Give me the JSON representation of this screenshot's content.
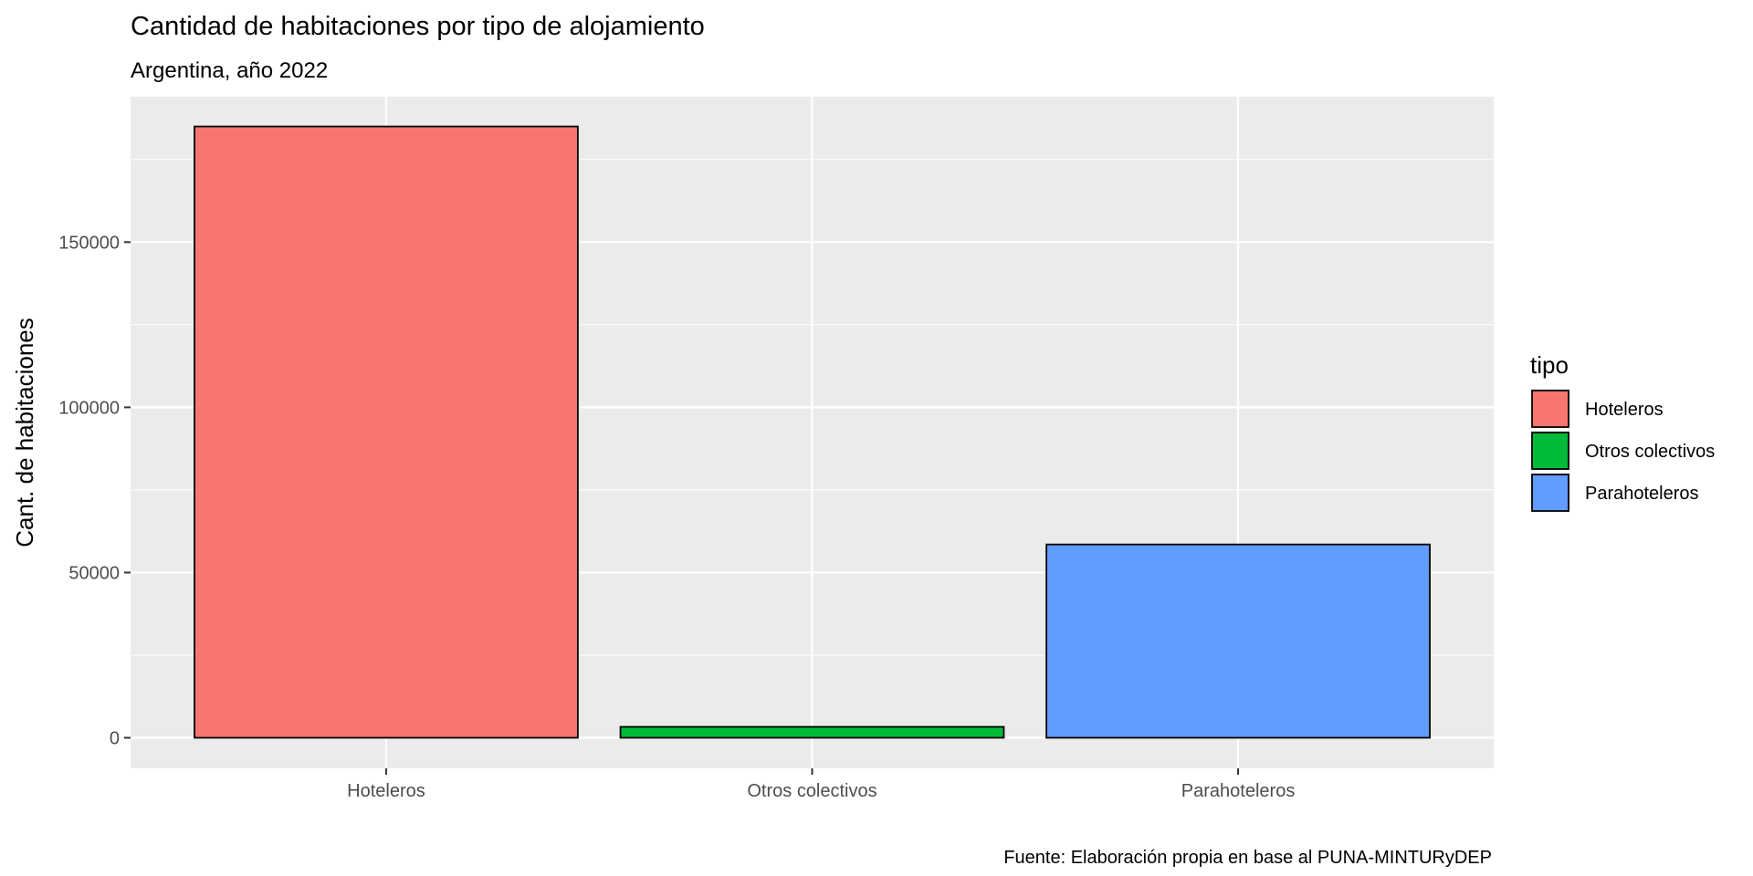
{
  "chart_data": {
    "type": "bar",
    "title": "Cantidad de habitaciones por tipo de alojamiento",
    "subtitle": "Argentina, año 2022",
    "xlabel": "",
    "ylabel": "Cant. de habitaciones",
    "caption": "Fuente: Elaboración propia en base al PUNA-MINTURyDEP",
    "categories": [
      "Hoteleros",
      "Otros colectivos",
      "Parahoteleros"
    ],
    "values": [
      185000,
      3300,
      58500
    ],
    "colors": [
      "#F8766D",
      "#00BA38",
      "#619CFF"
    ],
    "ylim": [
      -9250,
      194000
    ],
    "yticks": [
      0,
      50000,
      100000,
      150000
    ],
    "ytick_labels": [
      "0",
      "50000",
      "100000",
      "150000"
    ],
    "grid": true,
    "legend": {
      "title": "tipo",
      "position": "right",
      "entries": [
        "Hoteleros",
        "Otros colectivos",
        "Parahoteleros"
      ]
    }
  }
}
